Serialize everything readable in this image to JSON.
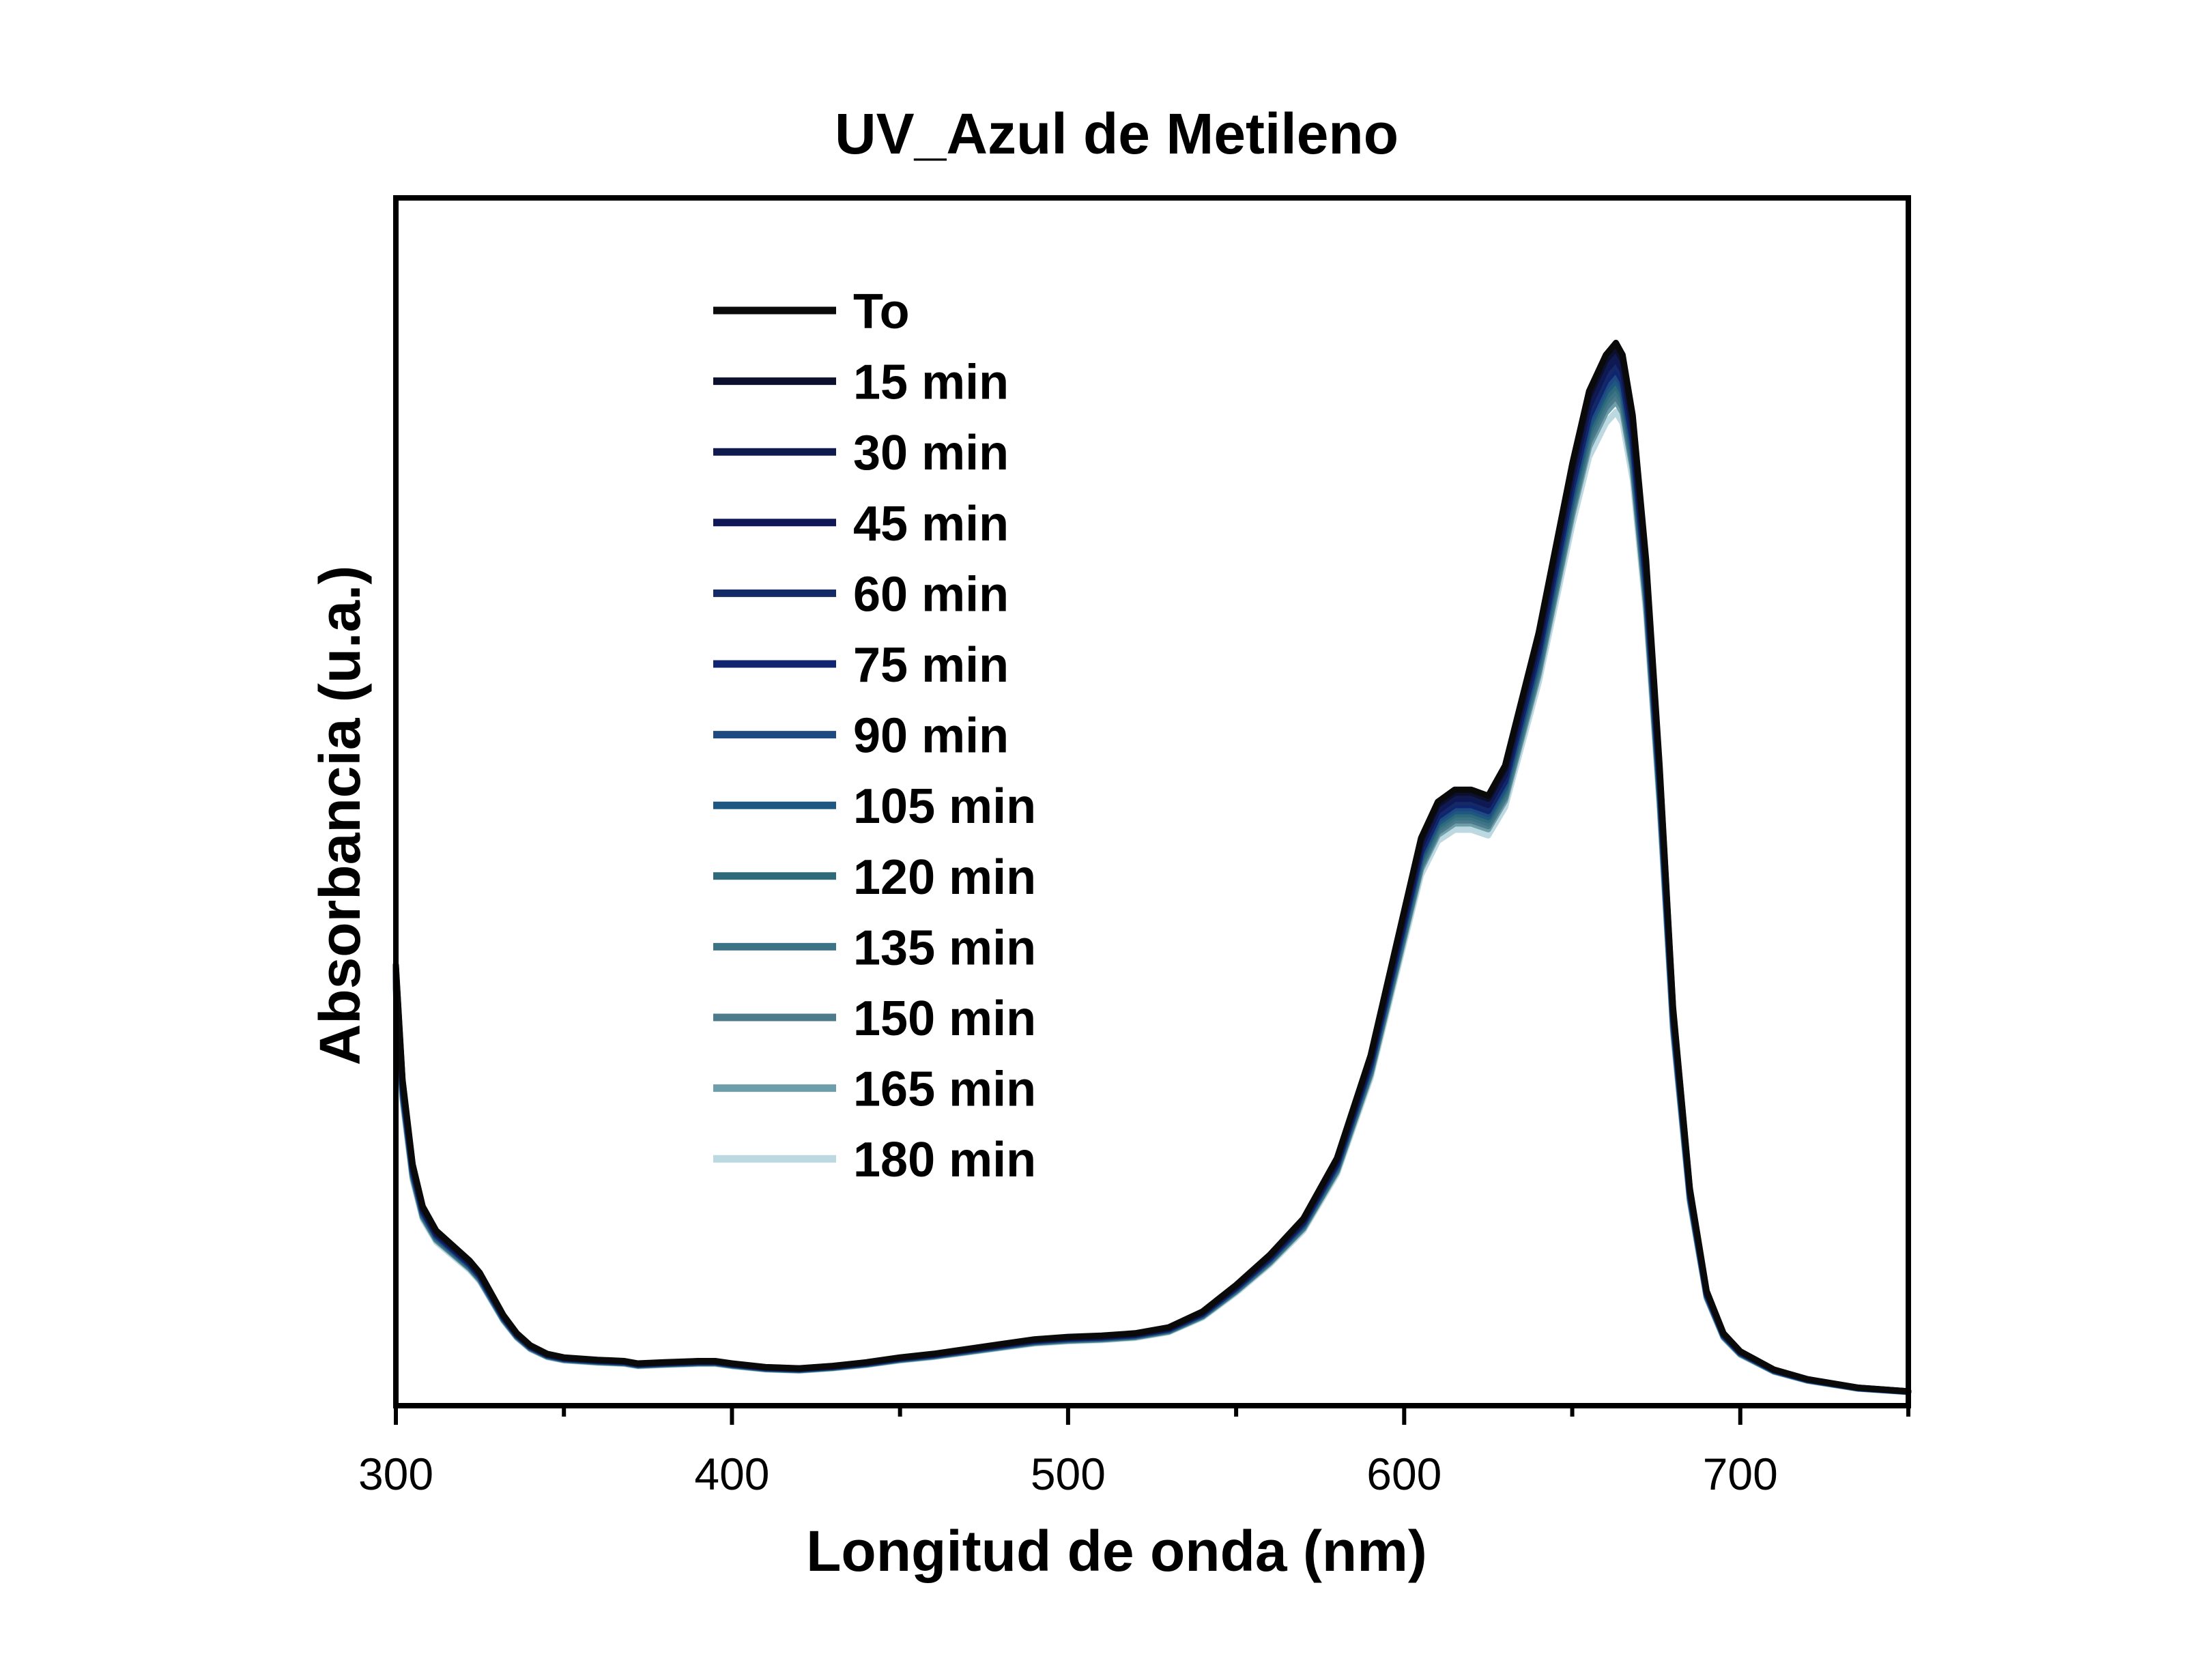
{
  "chart_data": {
    "type": "line",
    "title": "UV_Azul de Metileno",
    "xlabel": "Longitud de onda (nm)",
    "ylabel": "Absorbancia (u.a.)",
    "xlim": [
      300,
      750
    ],
    "ylim": [
      0,
      1.0
    ],
    "x_ticks": [
      300,
      400,
      500,
      600,
      700
    ],
    "x_tick_labels": [
      "300",
      "400",
      "500",
      "600",
      "700"
    ],
    "y_ticks_shown": false,
    "grid": false,
    "legend_position": "top-left",
    "profile": {
      "x": [
        300,
        302,
        305,
        308,
        312,
        318,
        322,
        325,
        328,
        332,
        336,
        340,
        345,
        350,
        360,
        368,
        372,
        380,
        390,
        395,
        400,
        410,
        420,
        430,
        440,
        450,
        460,
        470,
        480,
        490,
        500,
        510,
        520,
        530,
        540,
        550,
        560,
        570,
        580,
        590,
        595,
        600,
        605,
        610,
        615,
        620,
        625,
        630,
        640,
        650,
        655,
        660,
        663,
        665,
        668,
        672,
        676,
        680,
        685,
        690,
        695,
        700,
        710,
        720,
        735,
        750
      ],
      "y": [
        0.365,
        0.27,
        0.2,
        0.165,
        0.145,
        0.13,
        0.12,
        0.11,
        0.095,
        0.075,
        0.06,
        0.05,
        0.043,
        0.04,
        0.038,
        0.037,
        0.035,
        0.036,
        0.037,
        0.037,
        0.035,
        0.032,
        0.031,
        0.033,
        0.036,
        0.04,
        0.043,
        0.047,
        0.051,
        0.055,
        0.057,
        0.058,
        0.06,
        0.065,
        0.078,
        0.1,
        0.125,
        0.155,
        0.205,
        0.29,
        0.35,
        0.41,
        0.47,
        0.5,
        0.51,
        0.51,
        0.505,
        0.53,
        0.64,
        0.78,
        0.84,
        0.87,
        0.88,
        0.87,
        0.82,
        0.7,
        0.53,
        0.33,
        0.18,
        0.095,
        0.06,
        0.045,
        0.03,
        0.022,
        0.015,
        0.012
      ]
    },
    "series": [
      {
        "name": "To",
        "color": "#0a0a0a",
        "scale": 1.0
      },
      {
        "name": "15 min",
        "color": "#0c0f2e",
        "scale": 0.995
      },
      {
        "name": "30 min",
        "color": "#0f1a4f",
        "scale": 0.99
      },
      {
        "name": "45 min",
        "color": "#0f1757",
        "scale": 0.985
      },
      {
        "name": "60 min",
        "color": "#132a66",
        "scale": 0.98
      },
      {
        "name": "75 min",
        "color": "#0f2570",
        "scale": 0.975
      },
      {
        "name": "90 min",
        "color": "#1d4a80",
        "scale": 0.97
      },
      {
        "name": "105 min",
        "color": "#1e5882",
        "scale": 0.965
      },
      {
        "name": "120 min",
        "color": "#2f6a7a",
        "scale": 0.96
      },
      {
        "name": "135 min",
        "color": "#3c7487",
        "scale": 0.955
      },
      {
        "name": "150 min",
        "color": "#4e7b8c",
        "scale": 0.95
      },
      {
        "name": "165 min",
        "color": "#6e9eaa",
        "scale": 0.945
      },
      {
        "name": "180 min",
        "color": "#bcd8e0",
        "scale": 0.935
      }
    ]
  }
}
